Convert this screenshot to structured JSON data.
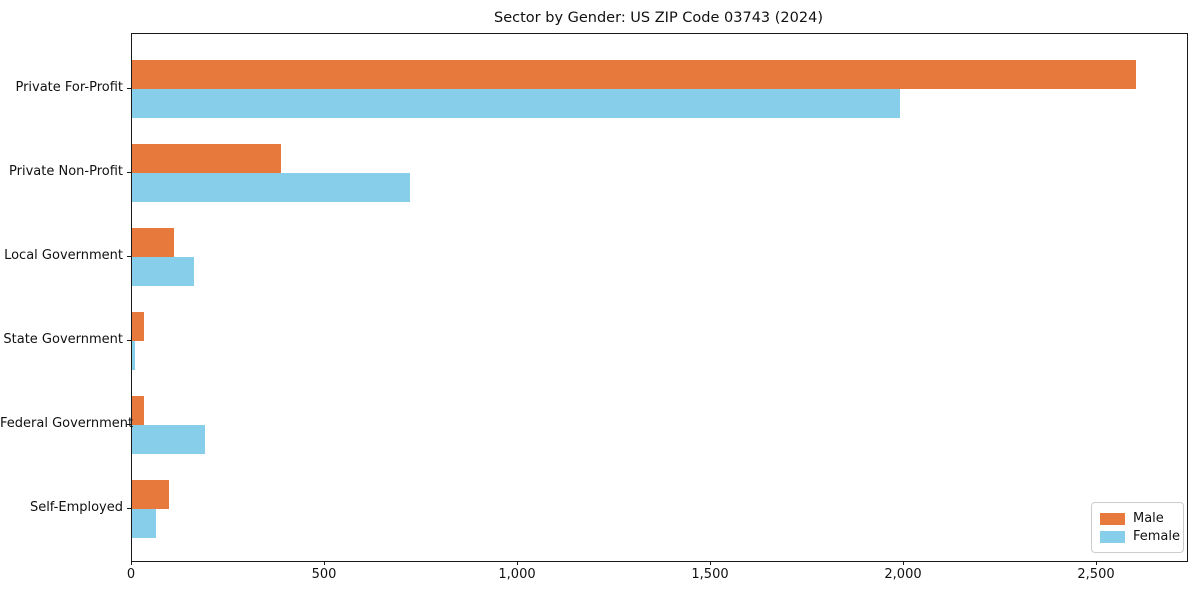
{
  "chart_data": {
    "type": "bar",
    "orientation": "horizontal",
    "title": "Sector by Gender: US ZIP Code 03743 (2024)",
    "categories": [
      "Private For-Profit",
      "Private Non-Profit",
      "Local Government",
      "State Government",
      "Federal Government",
      "Self-Employed"
    ],
    "series": [
      {
        "name": "Male",
        "color": "#e8793d",
        "values": [
          2600,
          385,
          110,
          30,
          30,
          95
        ]
      },
      {
        "name": "Female",
        "color": "#87ceeb",
        "values": [
          1990,
          720,
          160,
          8,
          190,
          62
        ]
      }
    ],
    "xlabel": "",
    "ylabel": "",
    "xlim": [
      0,
      2732
    ],
    "xticks": [
      0,
      500,
      1000,
      1500,
      2000,
      2500
    ],
    "xtick_labels": [
      "0",
      "500",
      "1,000",
      "1,500",
      "2,000",
      "2,500"
    ],
    "grid": false,
    "legend": {
      "position": "lower right",
      "entries": [
        "Male",
        "Female"
      ]
    }
  }
}
